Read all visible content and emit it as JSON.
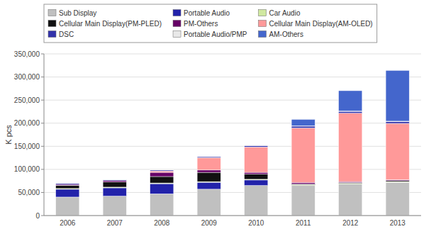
{
  "chart_data": {
    "type": "bar",
    "stacked": true,
    "grid": true,
    "legend": "top",
    "ylabel": "K pcs",
    "categories": [
      "2006",
      "2007",
      "2008",
      "2009",
      "2010",
      "2011",
      "2012",
      "2013"
    ],
    "ylim": [
      0,
      350000
    ],
    "yticks": [
      0,
      {
        "value": 50000,
        "label": "50,000"
      },
      {
        "value": 100000,
        "label": "100,000"
      },
      {
        "value": 150000,
        "label": "150,000"
      },
      {
        "value": 200000,
        "label": "200,000"
      },
      {
        "value": 250000,
        "label": "250,000"
      },
      {
        "value": 300000,
        "label": "300,000"
      },
      {
        "value": 350000,
        "label": "350,000"
      }
    ],
    "series": [
      {
        "name": "Sub Display",
        "color": "#c0c0c0",
        "values": [
          40000,
          42000,
          47000,
          57000,
          65000,
          65000,
          68000,
          72000
        ]
      },
      {
        "name": "Portable Audio",
        "color": "#2222aa",
        "values": [
          17000,
          18000,
          22000,
          15000,
          12000,
          0,
          0,
          0
        ]
      },
      {
        "name": "Car Audio",
        "color": "#d0e8a0",
        "values": [
          1500,
          1500,
          1500,
          1500,
          1500,
          1500,
          1500,
          1500
        ]
      },
      {
        "name": "Cellular Main Display(PM-PLED)",
        "color": "#111111",
        "values": [
          7000,
          11000,
          14000,
          20000,
          11000,
          2000,
          2000,
          2000
        ]
      },
      {
        "name": "PM-Others",
        "color": "#660066",
        "values": [
          2000,
          3000,
          9000,
          5000,
          4000,
          3000,
          2000,
          2000
        ]
      },
      {
        "name": "Cellular Main Display(AM-OLED)",
        "color": "#ff9999",
        "values": [
          0,
          0,
          3000,
          27000,
          55000,
          118000,
          148000,
          122000
        ]
      },
      {
        "name": "DSC",
        "color": "#3333aa",
        "values": [
          2000,
          2000,
          2000,
          2000,
          3000,
          4000,
          4000,
          4000
        ]
      },
      {
        "name": "Portable Audio/PMP",
        "color": "#e8e8e8",
        "values": [
          800,
          800,
          800,
          800,
          800,
          800,
          800,
          800
        ]
      },
      {
        "name": "AM-Others",
        "color": "#4466cc",
        "values": [
          0,
          0,
          0,
          0,
          0,
          14000,
          44000,
          110000
        ]
      }
    ]
  }
}
